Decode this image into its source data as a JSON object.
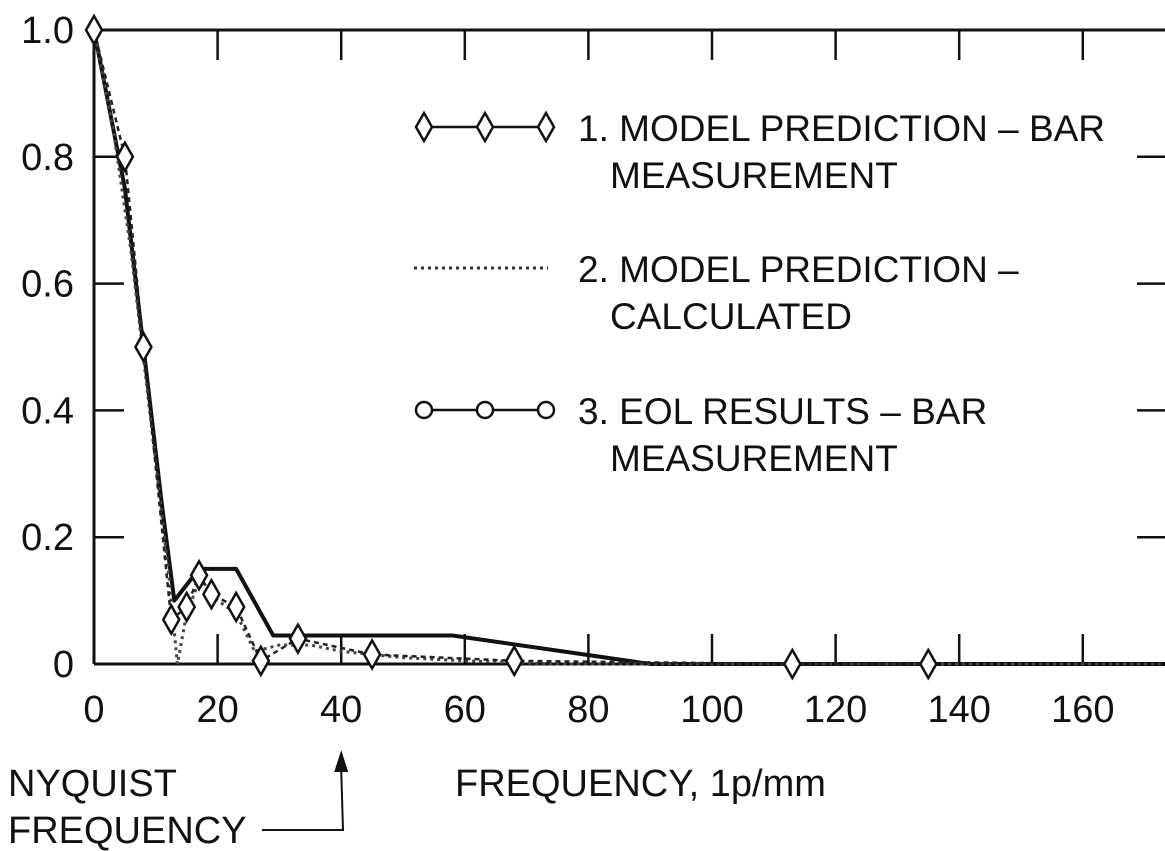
{
  "chart_data": {
    "type": "line",
    "title": "",
    "xlabel": "FREQUENCY, 1p/mm",
    "ylabel": "",
    "xlim": [
      0,
      175
    ],
    "ylim": [
      0,
      1.0
    ],
    "x_ticks": [
      0,
      20,
      40,
      60,
      80,
      100,
      120,
      140,
      160
    ],
    "x_tick_labels": [
      "0",
      "20",
      "40",
      "60",
      "80",
      "100",
      "120",
      "140",
      "160"
    ],
    "y_ticks": [
      0,
      0.2,
      0.4,
      0.6,
      0.8,
      1.0
    ],
    "y_tick_labels": [
      "0",
      "0.2",
      "0.4",
      "0.6",
      "0.8",
      "1.0"
    ],
    "grid": false,
    "legend_placement": "top-right",
    "legend": [
      {
        "lines": [
          "1. MODEL PREDICTION – BAR",
          "MEASUREMENT"
        ],
        "marker": "diamond",
        "style": "solid"
      },
      {
        "lines": [
          "2. MODEL PREDICTION –",
          "CALCULATED"
        ],
        "marker": "none",
        "style": "dotted"
      },
      {
        "lines": [
          "3. EOL RESULTS – BAR",
          "MEASUREMENT"
        ],
        "marker": "circle",
        "style": "solid"
      }
    ],
    "annotation": {
      "lines": [
        "NYQUIST",
        "FREQUENCY"
      ],
      "x": 40
    },
    "series": [
      {
        "style": "diamond-dotted",
        "x": [
          0,
          5,
          8,
          12.5,
          15,
          17,
          19,
          23,
          27,
          33,
          45,
          68,
          113,
          135
        ],
        "y": [
          1.0,
          0.8,
          0.5,
          0.07,
          0.09,
          0.14,
          0.11,
          0.09,
          0.005,
          0.04,
          0.015,
          0.005,
          0.0,
          0.0
        ]
      },
      {
        "style": "dotted",
        "x": [
          0,
          3,
          6,
          9,
          12,
          13.5,
          15,
          17,
          20,
          23,
          26,
          30,
          35,
          40,
          50,
          60,
          75,
          90,
          120,
          175
        ],
        "y": [
          1.0,
          0.85,
          0.65,
          0.4,
          0.15,
          0.0,
          0.08,
          0.13,
          0.1,
          0.08,
          0.02,
          0.03,
          0.03,
          0.02,
          0.01,
          0.005,
          0.0,
          0.0,
          0.0,
          0.0
        ]
      },
      {
        "style": "solid",
        "x": [
          0,
          5,
          8,
          11,
          13,
          17,
          23,
          29,
          58,
          90,
          175
        ],
        "y": [
          1.0,
          0.75,
          0.5,
          0.25,
          0.1,
          0.15,
          0.15,
          0.045,
          0.045,
          0.0,
          0.0
        ]
      }
    ]
  }
}
